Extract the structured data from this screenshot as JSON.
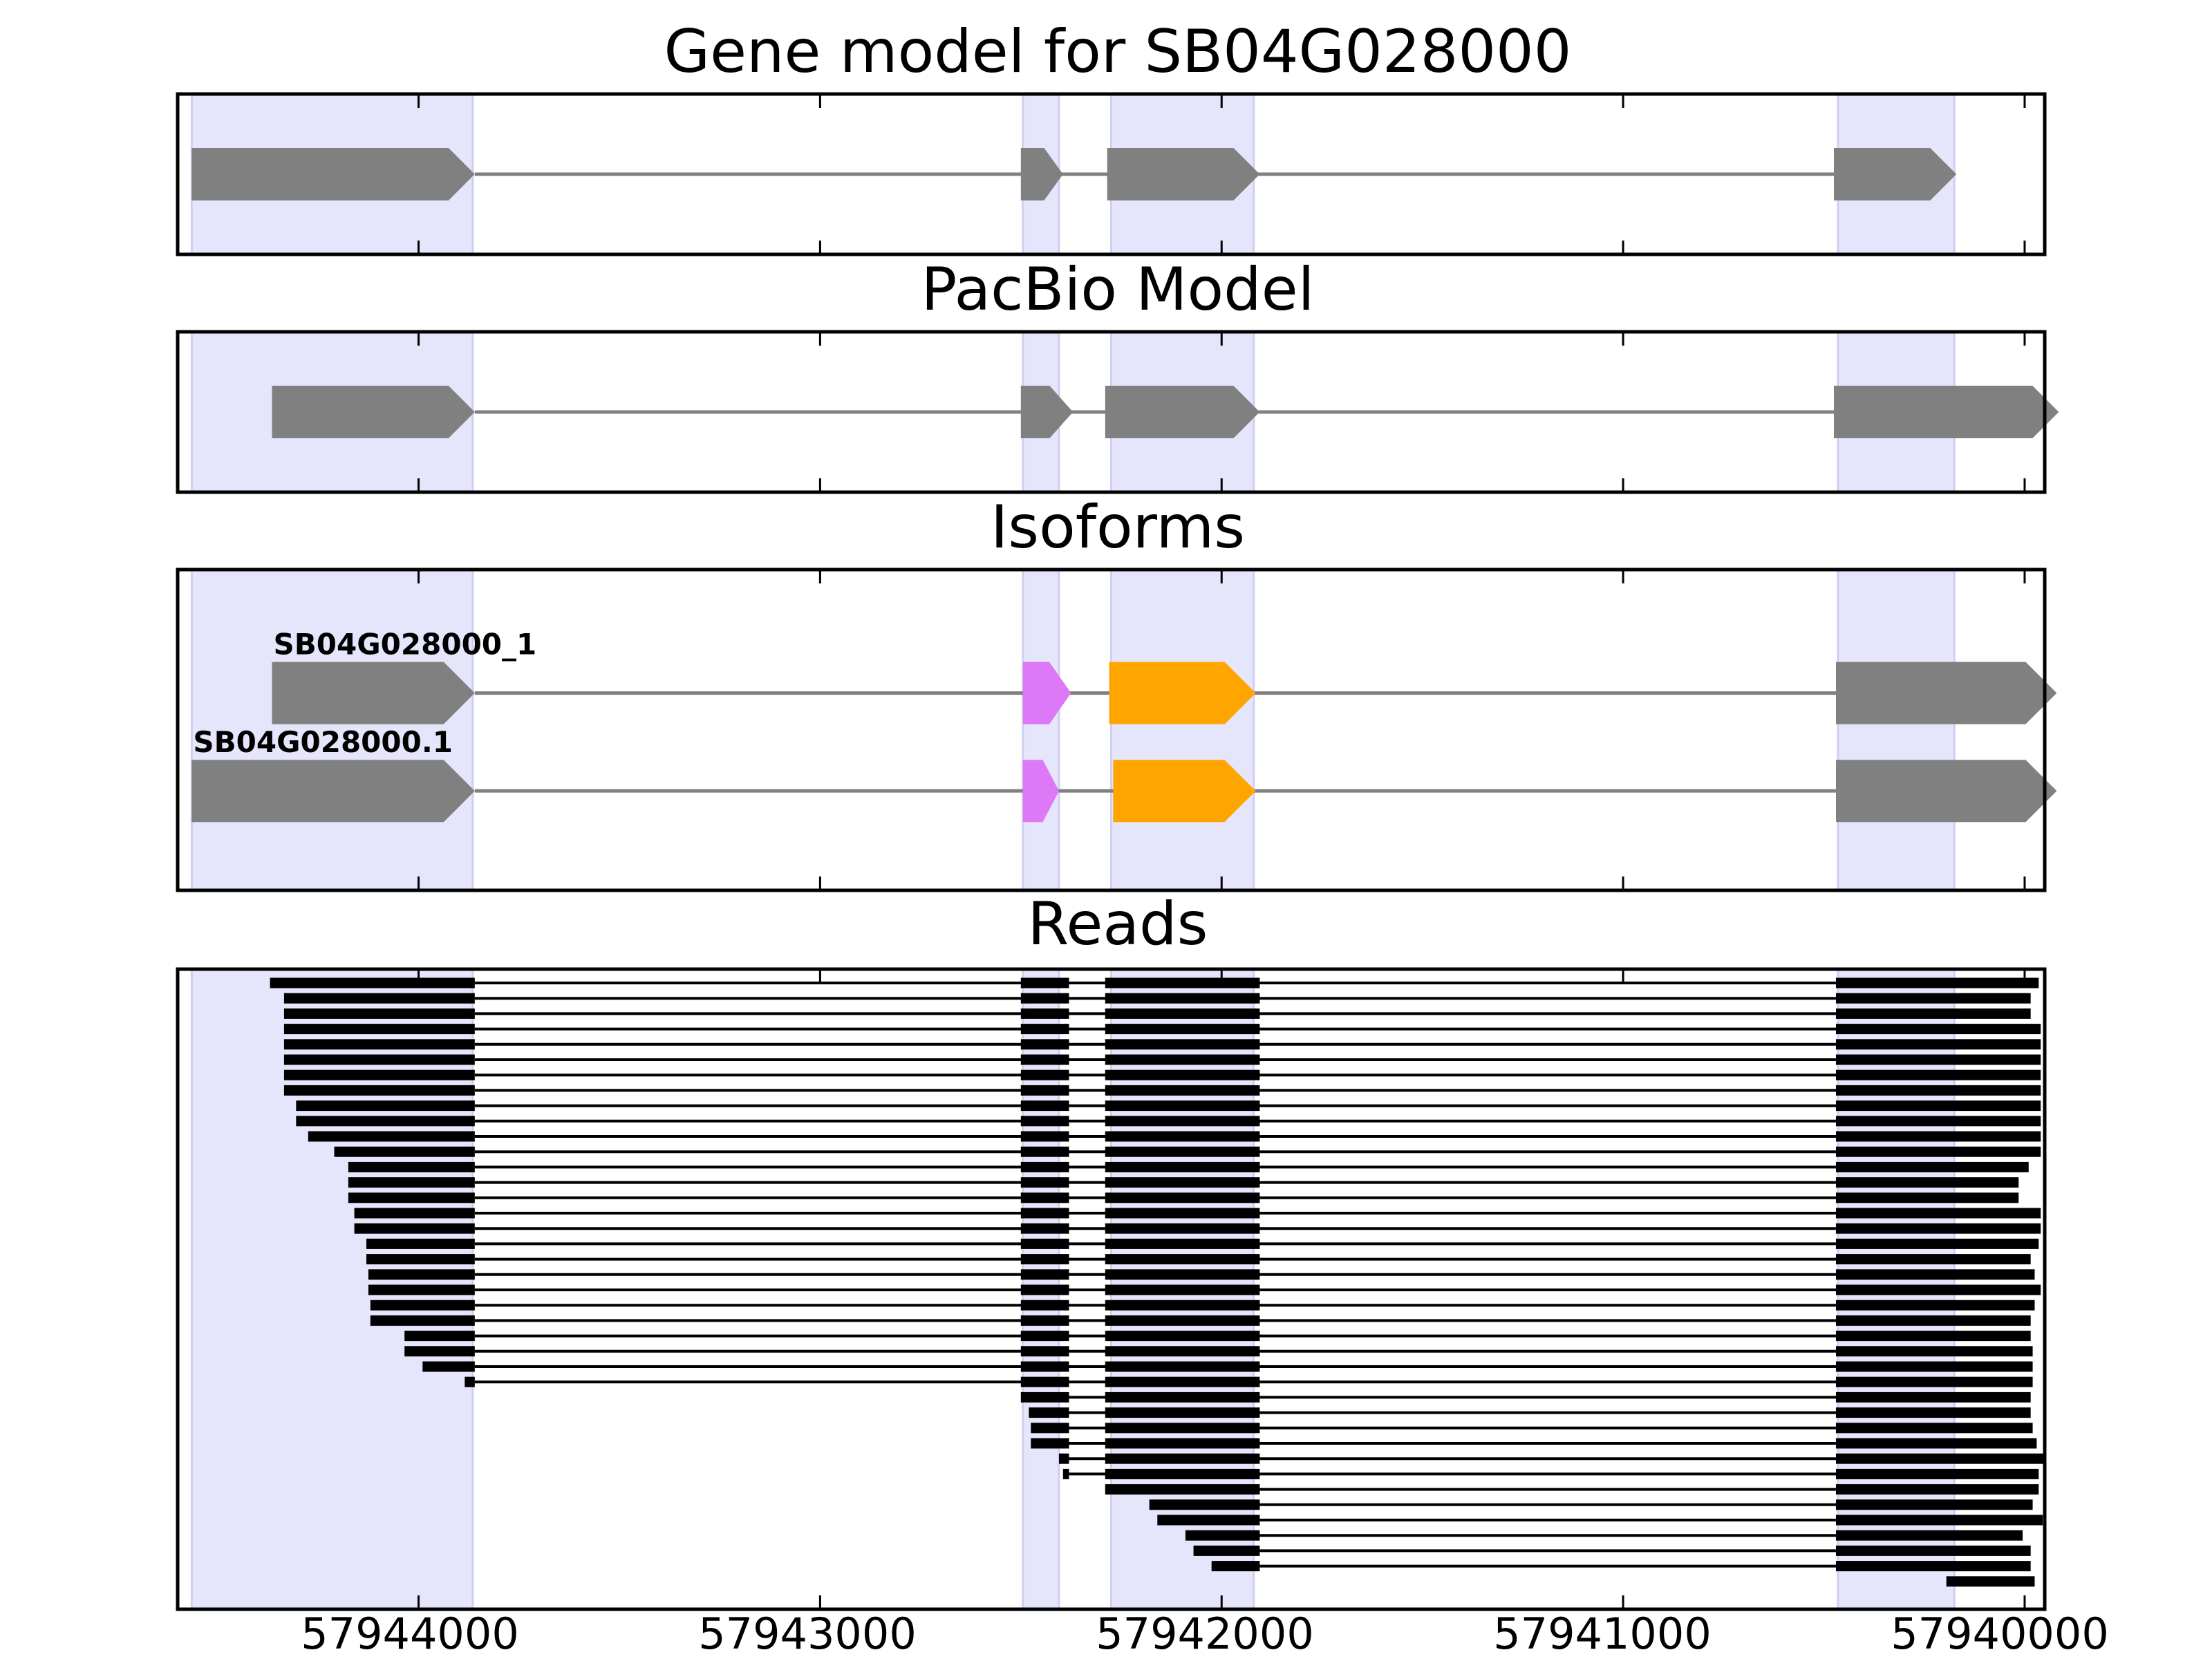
{
  "chart_data": {
    "type": "gene-track",
    "x_axis": {
      "domain": [
        57944600,
        57939950
      ],
      "reversed": true,
      "ticks": [
        57944000,
        57943000,
        57942000,
        57941000,
        57940000
      ],
      "tick_labels": [
        "57944000",
        "57943000",
        "57942000",
        "57941000",
        "57940000"
      ]
    },
    "highlight_regions": [
      [
        57944565,
        57943865
      ],
      [
        57942495,
        57942405
      ],
      [
        57942275,
        57941920
      ],
      [
        57940465,
        57940175
      ]
    ],
    "colors": {
      "highlight": "#e5e5fb",
      "highlight_edge": "#cfcff2",
      "exon": "#808080",
      "intron": "#808080",
      "read": "#000000",
      "isoform_exon2": "#dd78f6",
      "isoform_exon3": "#ffa500"
    },
    "panels": [
      {
        "title": "Gene model for SB04G028000",
        "kind": "gene",
        "exons": [
          [
            57944565,
            57943860
          ],
          [
            57942500,
            57942395
          ],
          [
            57942285,
            57941905
          ],
          [
            57940475,
            57940170
          ]
        ]
      },
      {
        "title": "PacBio Model",
        "kind": "gene",
        "exons": [
          [
            57944365,
            57943860
          ],
          [
            57942500,
            57942370
          ],
          [
            57942290,
            57941905
          ],
          [
            57940475,
            57939915
          ]
        ]
      },
      {
        "title": "Isoforms",
        "kind": "isoforms",
        "isoforms": [
          {
            "label": "SB04G028000_1",
            "exons": [
              [
                57944365,
                57943860
              ],
              [
                57942495,
                57942375
              ],
              [
                57942280,
                57941915
              ],
              [
                57940470,
                57939920
              ]
            ],
            "exon_colors": [
              "#808080",
              "#dd78f6",
              "#ffa500",
              "#808080"
            ]
          },
          {
            "label": "SB04G028000.1",
            "exons": [
              [
                57944565,
                57943860
              ],
              [
                57942495,
                57942405
              ],
              [
                57942270,
                57941915
              ],
              [
                57940470,
                57939920
              ]
            ],
            "exon_colors": [
              "#808080",
              "#dd78f6",
              "#ffa500",
              "#808080"
            ]
          }
        ]
      },
      {
        "title": "Reads",
        "kind": "reads",
        "exon_boundaries": [
          [
            57943860,
            57942500,
            57942380
          ],
          [
            57942290,
            57941905
          ],
          [
            57940470
          ]
        ],
        "reads": [
          {
            "start": 57944370,
            "end": 57939965
          },
          {
            "start": 57944335,
            "end": 57939985
          },
          {
            "start": 57944335,
            "end": 57939985
          },
          {
            "start": 57944335,
            "end": 57939960
          },
          {
            "start": 57944335,
            "end": 57939960
          },
          {
            "start": 57944335,
            "end": 57939960
          },
          {
            "start": 57944335,
            "end": 57939960
          },
          {
            "start": 57944335,
            "end": 57939960
          },
          {
            "start": 57944305,
            "end": 57939960
          },
          {
            "start": 57944305,
            "end": 57939960
          },
          {
            "start": 57944275,
            "end": 57939960
          },
          {
            "start": 57944210,
            "end": 57939960
          },
          {
            "start": 57944175,
            "end": 57939990
          },
          {
            "start": 57944175,
            "end": 57940015
          },
          {
            "start": 57944175,
            "end": 57940015
          },
          {
            "start": 57944160,
            "end": 57939960
          },
          {
            "start": 57944160,
            "end": 57939960
          },
          {
            "start": 57944130,
            "end": 57939965
          },
          {
            "start": 57944130,
            "end": 57939985
          },
          {
            "start": 57944125,
            "end": 57939975
          },
          {
            "start": 57944125,
            "end": 57939960
          },
          {
            "start": 57944120,
            "end": 57939975
          },
          {
            "start": 57944120,
            "end": 57939985
          },
          {
            "start": 57944035,
            "end": 57939985
          },
          {
            "start": 57944035,
            "end": 57939980
          },
          {
            "start": 57943990,
            "end": 57939980
          },
          {
            "start": 57943885,
            "end": 57939980
          },
          {
            "start": 57942500,
            "end": 57939985,
            "first": 57942380
          },
          {
            "start": 57942480,
            "end": 57939985,
            "first": 57942380
          },
          {
            "start": 57942475,
            "end": 57939980,
            "first": 57942380
          },
          {
            "start": 57942475,
            "end": 57939970,
            "first": 57942380
          },
          {
            "start": 57942405,
            "end": 57939950,
            "first": 57942380
          },
          {
            "start": 57942395,
            "end": 57939965,
            "first": 57942380
          },
          {
            "start": 57942290,
            "end": 57939965,
            "first": 57941905
          },
          {
            "start": 57942180,
            "end": 57939980,
            "first": 57941905
          },
          {
            "start": 57942160,
            "end": 57939955,
            "first": 57941905
          },
          {
            "start": 57942090,
            "end": 57940005,
            "first": 57941905
          },
          {
            "start": 57942070,
            "end": 57939985,
            "first": 57941905
          },
          {
            "start": 57942025,
            "end": 57939985,
            "first": 57941905
          },
          {
            "start": 57940195,
            "end": 57939975,
            "first": 57940195
          }
        ]
      }
    ]
  }
}
